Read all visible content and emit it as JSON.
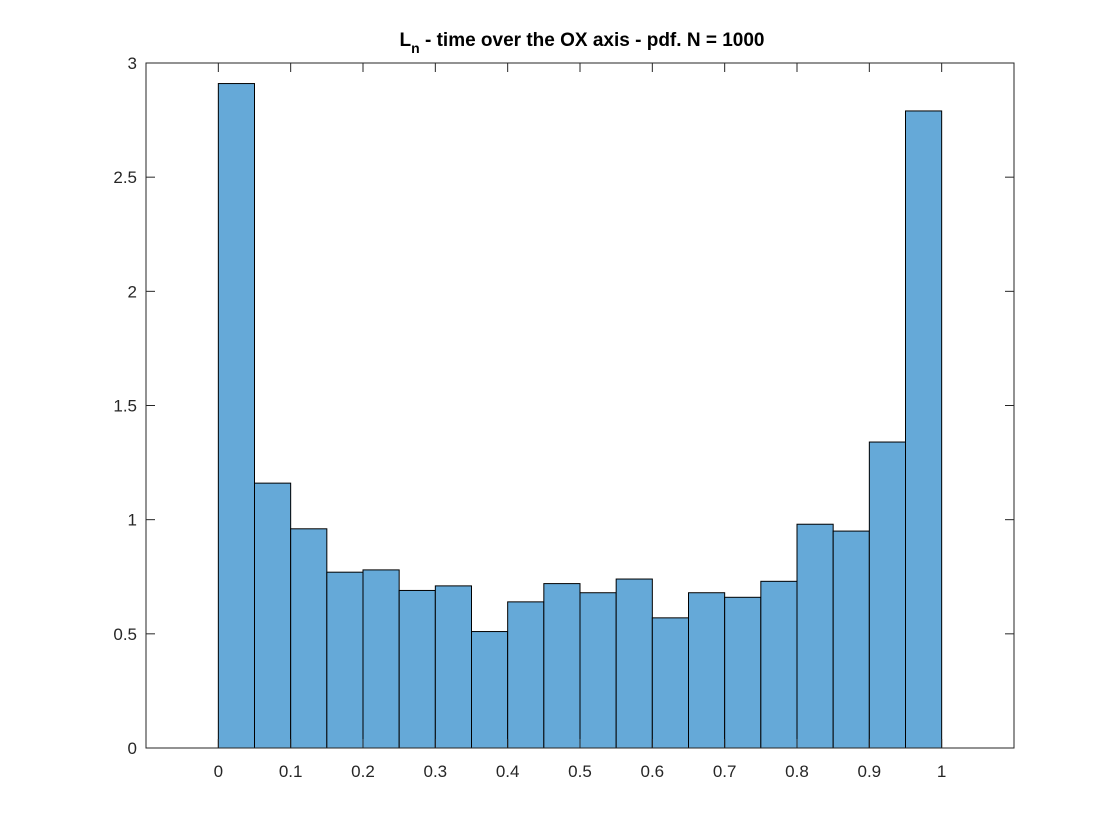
{
  "chart_data": {
    "type": "bar",
    "title": {
      "main": "L",
      "subscript": "n",
      "rest": " - time over the OX axis - pdf. N = 1000"
    },
    "xlabel": "",
    "ylabel": "",
    "bin_edges": [
      0,
      0.05,
      0.1,
      0.15,
      0.2,
      0.25,
      0.3,
      0.35,
      0.4,
      0.45,
      0.5,
      0.55,
      0.6,
      0.65,
      0.7,
      0.75,
      0.8,
      0.85,
      0.9,
      0.95,
      1.0
    ],
    "values": [
      2.91,
      1.16,
      0.96,
      0.77,
      0.78,
      0.69,
      0.71,
      0.51,
      0.64,
      0.72,
      0.68,
      0.74,
      0.57,
      0.68,
      0.66,
      0.73,
      0.98,
      0.95,
      1.34,
      2.79
    ],
    "xlim": [
      -0.1,
      1.1
    ],
    "ylim": [
      0,
      3
    ],
    "xticks": [
      0,
      0.1,
      0.2,
      0.3,
      0.4,
      0.5,
      0.6,
      0.7,
      0.8,
      0.9,
      1
    ],
    "xtick_labels": [
      "0",
      "0.1",
      "0.2",
      "0.3",
      "0.4",
      "0.5",
      "0.6",
      "0.7",
      "0.8",
      "0.9",
      "1"
    ],
    "yticks": [
      0,
      0.5,
      1,
      1.5,
      2,
      2.5,
      3
    ],
    "ytick_labels": [
      "0",
      "0.5",
      "1",
      "1.5",
      "2",
      "2.5",
      "3"
    ],
    "grid": false,
    "legend": "none",
    "colors": {
      "bar_fill": "#65a9d8",
      "bar_edge": "#000000",
      "axis": "#262626"
    }
  }
}
